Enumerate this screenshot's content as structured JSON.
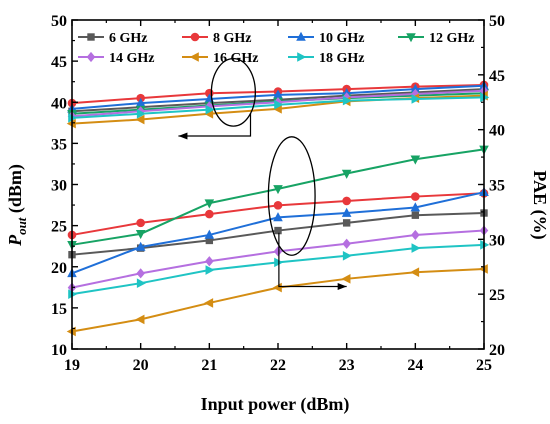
{
  "chart_data": {
    "type": "line",
    "x": [
      19,
      20,
      21,
      22,
      23,
      24,
      25
    ],
    "xlabel": "Input power (dBm)",
    "ylabel_left": {
      "main": "P",
      "sub": "out",
      "suffix": " (dBm)"
    },
    "ylabel_right": "PAE (%)",
    "xlim": [
      19,
      25
    ],
    "ylim_left": [
      10,
      50
    ],
    "ylim_right": [
      20,
      50
    ],
    "x_ticks": [
      "19",
      "20",
      "21",
      "22",
      "23",
      "24",
      "25"
    ],
    "y_ticks_left": [
      "10",
      "15",
      "20",
      "25",
      "30",
      "35",
      "40",
      "45",
      "50"
    ],
    "y_ticks_right": [
      "20",
      "25",
      "30",
      "35",
      "40",
      "45",
      "50"
    ],
    "grid": false,
    "legend_position": "top",
    "series": [
      {
        "name": "6 GHz",
        "color": "#595959",
        "marker": "square",
        "pout": [
          38.9,
          39.4,
          39.9,
          40.3,
          40.8,
          41.2,
          41.6
        ],
        "pae": [
          28.6,
          29.2,
          29.9,
          30.8,
          31.5,
          32.2,
          32.4
        ]
      },
      {
        "name": "8 GHz",
        "color": "#e8383b",
        "marker": "circle",
        "pout": [
          39.9,
          40.5,
          41.1,
          41.3,
          41.6,
          41.9,
          42.1
        ],
        "pae": [
          30.4,
          31.5,
          32.3,
          33.1,
          33.5,
          33.9,
          34.2
        ]
      },
      {
        "name": "10 GHz",
        "color": "#1f6fd8",
        "marker": "triangle",
        "pout": [
          39.2,
          39.9,
          40.4,
          40.9,
          41.1,
          41.6,
          42.0
        ],
        "pae": [
          26.9,
          29.3,
          30.4,
          32.0,
          32.4,
          32.9,
          34.3
        ]
      },
      {
        "name": "12 GHz",
        "color": "#17a364",
        "marker": "triangle-down",
        "pout": [
          38.6,
          39.1,
          39.6,
          40.1,
          40.5,
          40.8,
          41.1
        ],
        "pae": [
          29.5,
          30.5,
          33.3,
          34.6,
          36.0,
          37.3,
          38.2
        ]
      },
      {
        "name": "14 GHz",
        "color": "#b56fe0",
        "marker": "diamond",
        "pout": [
          38.3,
          38.9,
          39.5,
          40.0,
          40.6,
          41.0,
          41.4
        ],
        "pae": [
          25.6,
          26.9,
          28.0,
          28.9,
          29.6,
          30.4,
          30.8
        ]
      },
      {
        "name": "16 GHz",
        "color": "#d48d13",
        "marker": "left-triangle",
        "pout": [
          37.4,
          37.9,
          38.6,
          39.2,
          40.1,
          40.5,
          40.8
        ],
        "pae": [
          21.6,
          22.7,
          24.2,
          25.6,
          26.4,
          27.0,
          27.3
        ]
      },
      {
        "name": "18 GHz",
        "color": "#1fc4c4",
        "marker": "right-triangle",
        "pout": [
          38.1,
          38.6,
          39.1,
          39.7,
          40.2,
          40.4,
          40.6
        ],
        "pae": [
          25.0,
          26.0,
          27.2,
          27.9,
          28.5,
          29.2,
          29.5
        ]
      }
    ],
    "annotations": [
      {
        "ellipse_center": [
          21.35,
          41.2
        ],
        "ellipse_radius_x": 0.32,
        "ellipse_radius_y": 4.1,
        "arrow_to": [
          20.55,
          35.9
        ],
        "axis": "left"
      },
      {
        "ellipse_center": [
          22.2,
          28.6
        ],
        "ellipse_radius_x": 0.34,
        "ellipse_radius_y": 7.2,
        "arrow_to": [
          23.0,
          17.6
        ],
        "axis": "left"
      }
    ]
  }
}
